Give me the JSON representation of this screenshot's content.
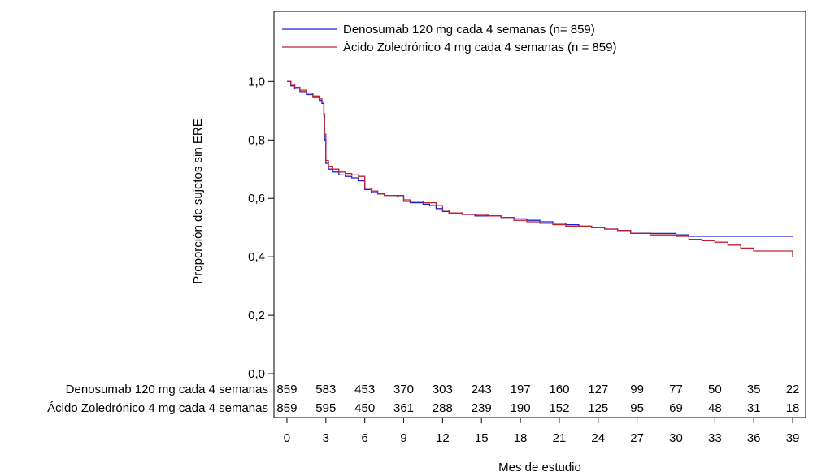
{
  "chart_data": {
    "type": "line",
    "title": "",
    "xlabel": "Mes de estudio",
    "ylabel": "Proporción de sujetos sin ERE",
    "xlim": [
      -1,
      40
    ],
    "ylim": [
      -0.15,
      1.24
    ],
    "x_ticks": [
      0,
      3,
      6,
      9,
      12,
      15,
      18,
      21,
      24,
      27,
      30,
      33,
      36,
      39
    ],
    "y_ticks": [
      {
        "value": 0.0,
        "label": "0,0"
      },
      {
        "value": 0.2,
        "label": "0,2"
      },
      {
        "value": 0.4,
        "label": "0,4"
      },
      {
        "value": 0.6,
        "label": "0,6"
      },
      {
        "value": 0.8,
        "label": "0,8"
      },
      {
        "value": 1.0,
        "label": "1,0"
      }
    ],
    "legend_position": "top-left",
    "series": [
      {
        "name": "Denosumab 120 mg cada 4 semanas (n= 859)",
        "risk_label": "Denosumab 120 mg cada 4 semanas",
        "color": "#2020d0",
        "points": [
          [
            0,
            1.0
          ],
          [
            0.3,
            0.985
          ],
          [
            0.6,
            0.975
          ],
          [
            1.0,
            0.965
          ],
          [
            1.5,
            0.955
          ],
          [
            2.0,
            0.945
          ],
          [
            2.5,
            0.935
          ],
          [
            2.7,
            0.925
          ],
          [
            2.85,
            0.88
          ],
          [
            2.9,
            0.8
          ],
          [
            3.0,
            0.72
          ],
          [
            3.2,
            0.7
          ],
          [
            3.5,
            0.69
          ],
          [
            4.0,
            0.68
          ],
          [
            4.5,
            0.675
          ],
          [
            5.0,
            0.67
          ],
          [
            5.5,
            0.66
          ],
          [
            6.0,
            0.63
          ],
          [
            6.5,
            0.62
          ],
          [
            7.0,
            0.615
          ],
          [
            7.5,
            0.61
          ],
          [
            8.5,
            0.605
          ],
          [
            9.0,
            0.59
          ],
          [
            9.5,
            0.585
          ],
          [
            10.5,
            0.58
          ],
          [
            11.0,
            0.575
          ],
          [
            11.5,
            0.565
          ],
          [
            12.0,
            0.555
          ],
          [
            12.5,
            0.55
          ],
          [
            13.5,
            0.545
          ],
          [
            14.5,
            0.54
          ],
          [
            15.5,
            0.54
          ],
          [
            16.5,
            0.535
          ],
          [
            17.5,
            0.53
          ],
          [
            18.5,
            0.525
          ],
          [
            19.5,
            0.52
          ],
          [
            20.5,
            0.515
          ],
          [
            21.5,
            0.51
          ],
          [
            22.5,
            0.505
          ],
          [
            23.5,
            0.5
          ],
          [
            24.5,
            0.495
          ],
          [
            25.5,
            0.49
          ],
          [
            26.5,
            0.485
          ],
          [
            28.0,
            0.48
          ],
          [
            29.0,
            0.48
          ],
          [
            30.0,
            0.475
          ],
          [
            31.0,
            0.47
          ],
          [
            33.0,
            0.47
          ],
          [
            35.0,
            0.47
          ],
          [
            37.0,
            0.47
          ],
          [
            39.0,
            0.47
          ]
        ]
      },
      {
        "name": "Ácido Zoledrónico 4 mg cada 4 semanas (n = 859)",
        "risk_label": "Ácido Zoledrónico 4 mg cada 4 semanas",
        "color": "#c02030",
        "points": [
          [
            0,
            1.0
          ],
          [
            0.3,
            0.99
          ],
          [
            0.6,
            0.98
          ],
          [
            1.0,
            0.97
          ],
          [
            1.5,
            0.96
          ],
          [
            2.0,
            0.95
          ],
          [
            2.5,
            0.94
          ],
          [
            2.7,
            0.93
          ],
          [
            2.85,
            0.89
          ],
          [
            2.9,
            0.82
          ],
          [
            3.0,
            0.73
          ],
          [
            3.2,
            0.71
          ],
          [
            3.5,
            0.7
          ],
          [
            4.0,
            0.69
          ],
          [
            4.5,
            0.685
          ],
          [
            5.0,
            0.68
          ],
          [
            5.5,
            0.675
          ],
          [
            6.0,
            0.635
          ],
          [
            6.5,
            0.625
          ],
          [
            7.0,
            0.615
          ],
          [
            7.5,
            0.61
          ],
          [
            8.5,
            0.61
          ],
          [
            9.0,
            0.595
          ],
          [
            9.5,
            0.59
          ],
          [
            10.5,
            0.585
          ],
          [
            11.0,
            0.585
          ],
          [
            11.5,
            0.575
          ],
          [
            12.0,
            0.56
          ],
          [
            12.5,
            0.55
          ],
          [
            13.5,
            0.545
          ],
          [
            14.5,
            0.545
          ],
          [
            15.5,
            0.54
          ],
          [
            16.5,
            0.535
          ],
          [
            17.5,
            0.525
          ],
          [
            18.5,
            0.52
          ],
          [
            19.5,
            0.515
          ],
          [
            20.5,
            0.51
          ],
          [
            21.5,
            0.505
          ],
          [
            22.5,
            0.505
          ],
          [
            23.5,
            0.5
          ],
          [
            24.5,
            0.495
          ],
          [
            25.5,
            0.49
          ],
          [
            26.5,
            0.48
          ],
          [
            28.0,
            0.475
          ],
          [
            29.0,
            0.475
          ],
          [
            30.0,
            0.47
          ],
          [
            31.0,
            0.46
          ],
          [
            32.0,
            0.455
          ],
          [
            33.0,
            0.45
          ],
          [
            34.0,
            0.44
          ],
          [
            35.0,
            0.43
          ],
          [
            36.0,
            0.42
          ],
          [
            37.0,
            0.42
          ],
          [
            38.0,
            0.42
          ],
          [
            38.9,
            0.42
          ],
          [
            39.0,
            0.4
          ]
        ]
      }
    ],
    "at_risk": {
      "x": [
        0,
        3,
        6,
        9,
        12,
        15,
        18,
        21,
        24,
        27,
        30,
        33,
        36,
        39
      ],
      "rows": [
        {
          "label": "Denosumab 120 mg cada 4 semanas",
          "values": [
            859,
            583,
            453,
            370,
            303,
            243,
            197,
            160,
            127,
            99,
            77,
            50,
            35,
            22
          ]
        },
        {
          "label": "Ácido Zoledrónico 4 mg cada 4 semanas",
          "values": [
            859,
            595,
            450,
            361,
            288,
            239,
            190,
            152,
            125,
            95,
            69,
            48,
            31,
            18
          ]
        }
      ]
    }
  }
}
